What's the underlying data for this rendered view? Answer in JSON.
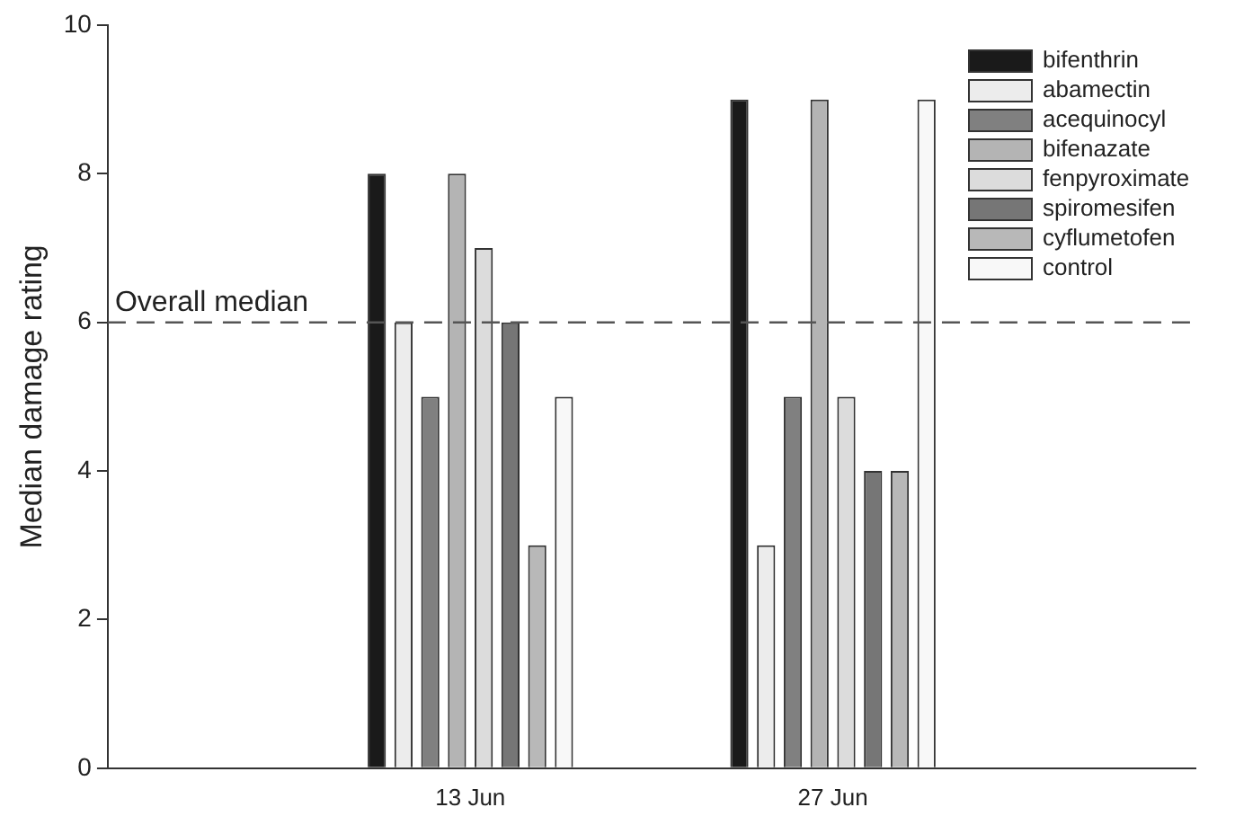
{
  "chart_data": {
    "type": "bar",
    "ylabel": "Median damage rating",
    "categories": [
      "13 Jun",
      "27 Jun"
    ],
    "series": [
      {
        "name": "bifenthrin",
        "color": "#1a1a1a",
        "values": [
          8,
          9
        ]
      },
      {
        "name": "abamectin",
        "color": "#ececec",
        "values": [
          6,
          3
        ]
      },
      {
        "name": "acequinocyl",
        "color": "#808080",
        "values": [
          5,
          5
        ]
      },
      {
        "name": "bifenazate",
        "color": "#b4b4b4",
        "values": [
          8,
          9
        ]
      },
      {
        "name": "fenpyroximate",
        "color": "#dcdcdc",
        "values": [
          7,
          5
        ]
      },
      {
        "name": "spiromesifen",
        "color": "#767676",
        "values": [
          6,
          4
        ]
      },
      {
        "name": "cyflumetofen",
        "color": "#b8b8b8",
        "values": [
          3,
          4
        ]
      },
      {
        "name": "control",
        "color": "#f8f8f8",
        "values": [
          5,
          9
        ]
      }
    ],
    "ylim": [
      0,
      10
    ],
    "yticks": [
      0,
      2,
      4,
      6,
      8,
      10
    ],
    "grid": false,
    "legend": "top right",
    "ref_lines": [
      {
        "axis": "y",
        "value": 6,
        "label": "Overall median",
        "line_style": "dashed",
        "color": "#555555"
      }
    ]
  }
}
